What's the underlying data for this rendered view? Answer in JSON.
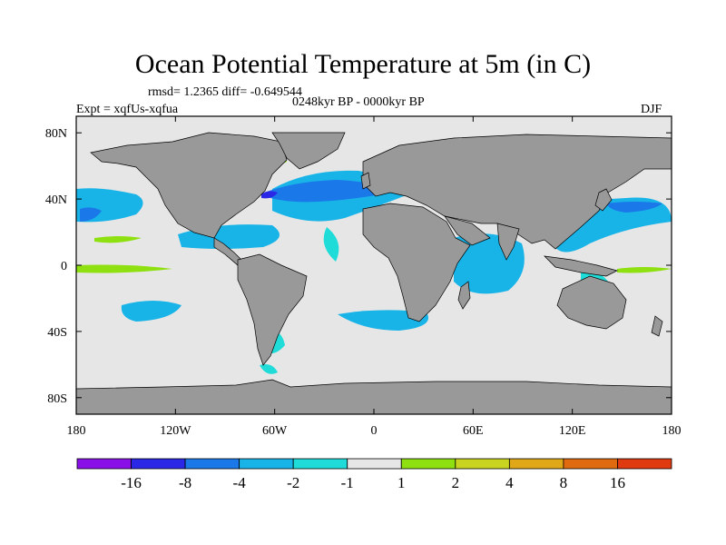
{
  "chart_data": {
    "type": "heatmap",
    "title": "Ocean Potential Temperature at 5m (in C)",
    "stats_text": "rmsd= 1.2365 diff= -0.649544",
    "experiment": "Expt = xqfUs-xqfua",
    "period": "0248kyr BP - 0000kyr BP",
    "season": "DJF",
    "xlim": [
      -180,
      180
    ],
    "ylim": [
      -90,
      90
    ],
    "x_ticks": [
      {
        "value": -180,
        "label": "180"
      },
      {
        "value": -120,
        "label": "120W"
      },
      {
        "value": -60,
        "label": "60W"
      },
      {
        "value": 0,
        "label": "0"
      },
      {
        "value": 60,
        "label": "60E"
      },
      {
        "value": 120,
        "label": "120E"
      },
      {
        "value": 180,
        "label": "180"
      }
    ],
    "y_ticks": [
      {
        "value": 80,
        "label": "80N"
      },
      {
        "value": 40,
        "label": "40N"
      },
      {
        "value": 0,
        "label": "0"
      },
      {
        "value": -40,
        "label": "40S"
      },
      {
        "value": -80,
        "label": "80S"
      }
    ],
    "colorbar": {
      "colors": [
        "#8a10e8",
        "#2a28e6",
        "#1a78e8",
        "#18b4e8",
        "#20dcd8",
        "#e6e6e6",
        "#8ee010",
        "#c8d420",
        "#e0a818",
        "#e06a10",
        "#e03a10"
      ],
      "labels": [
        "-16",
        "-8",
        "-4",
        "-2",
        "-1",
        "1",
        "2",
        "4",
        "8",
        "16"
      ]
    },
    "land_color": "#999999",
    "ocean_color": "#e6e6e6"
  }
}
